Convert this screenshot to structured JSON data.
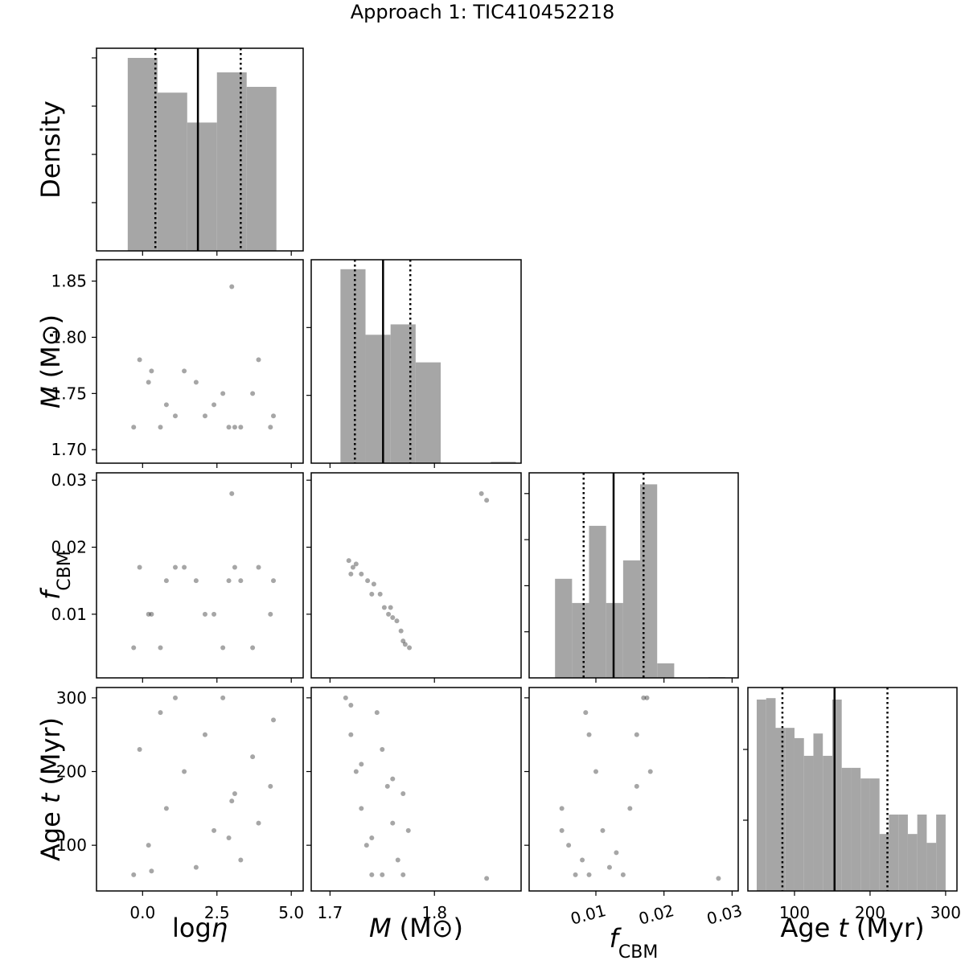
{
  "title": "Approach 1: TIC410452218",
  "chart_data": [
    {
      "type": "histogram",
      "ylabel": "Density",
      "color": "#a6a6a6",
      "xlim": [
        -1.55,
        5.4
      ],
      "xticks": [
        {
          "value": 0,
          "label": "0.0"
        },
        {
          "value": 2.5,
          "label": "2.5"
        },
        {
          "value": 5,
          "label": "5.0"
        }
      ],
      "ylim": [
        0,
        0.21
      ],
      "yticks": [
        0.05,
        0.1,
        0.15,
        0.2
      ],
      "bins": [
        -0.5,
        0.5,
        1.5,
        2.5,
        3.5,
        4.5
      ],
      "counts": [
        0.2,
        0.164,
        0.133,
        0.185,
        0.17
      ],
      "median": 1.86,
      "quantiles": [
        0.43,
        3.3
      ]
    },
    {
      "type": "scatter",
      "ylabel": {
        "symbol": "M",
        "unit": "(M⊙)"
      },
      "xlim": [
        -1.55,
        5.4
      ],
      "xticks": [
        {
          "value": 0,
          "label": "0.0"
        },
        {
          "value": 2.5,
          "label": "2.5"
        },
        {
          "value": 5,
          "label": "5.0"
        }
      ],
      "ylim": [
        1.688,
        1.869
      ],
      "yticks": [
        {
          "value": 1.7,
          "label": "1.70"
        },
        {
          "value": 1.75,
          "label": "1.75"
        },
        {
          "value": 1.8,
          "label": "1.80"
        },
        {
          "value": 1.85,
          "label": "1.85"
        }
      ],
      "x": [
        -0.3,
        0.2,
        0.8,
        1.4,
        2.1,
        2.7,
        3.3,
        3.9,
        4.3,
        -0.1,
        0.6,
        1.8,
        2.4,
        3.1,
        3.7,
        4.4,
        0.3,
        1.1,
        2.9,
        3.0
      ],
      "y": [
        1.72,
        1.76,
        1.74,
        1.77,
        1.73,
        1.75,
        1.72,
        1.78,
        1.72,
        1.78,
        1.72,
        1.76,
        1.74,
        1.72,
        1.75,
        1.73,
        1.77,
        1.73,
        1.72,
        1.845
      ]
    },
    {
      "type": "histogram",
      "color": "#a6a6a6",
      "xlim": [
        1.682,
        1.883
      ],
      "xticks": [
        1.7,
        1.8
      ],
      "ylim": [
        0,
        45
      ],
      "yticks": [
        15,
        30
      ],
      "bins": [
        1.71,
        1.734,
        1.758,
        1.782,
        1.806,
        1.83,
        1.854,
        1.878
      ],
      "counts": [
        42.9,
        28.4,
        30.7,
        22.3,
        0,
        0,
        0.3
      ],
      "median": 1.7508,
      "quantiles": [
        1.7238,
        1.7769
      ]
    },
    {
      "type": "scatter",
      "ylabel": {
        "symbol": "f",
        "subscript": "CBM"
      },
      "xlim": [
        -1.55,
        5.4
      ],
      "xticks": [
        {
          "value": 0,
          "label": "0.0"
        },
        {
          "value": 2.5,
          "label": "2.5"
        },
        {
          "value": 5,
          "label": "5.0"
        }
      ],
      "ylim": [
        0.0005,
        0.0311
      ],
      "yticks": [
        0.01,
        0.02,
        0.03
      ],
      "x": [
        -0.3,
        0.2,
        0.8,
        1.4,
        2.1,
        2.7,
        3.3,
        3.9,
        4.3,
        -0.1,
        0.6,
        1.8,
        2.4,
        3.1,
        3.7,
        4.4,
        0.3,
        1.1,
        2.9,
        3.0
      ],
      "y": [
        0.005,
        0.01,
        0.015,
        0.017,
        0.01,
        0.005,
        0.015,
        0.017,
        0.01,
        0.017,
        0.005,
        0.015,
        0.01,
        0.017,
        0.005,
        0.015,
        0.01,
        0.017,
        0.015,
        0.028
      ]
    },
    {
      "type": "scatter",
      "xlim": [
        1.682,
        1.883
      ],
      "xticks": [
        1.7,
        1.8
      ],
      "ylim": [
        0.0005,
        0.0311
      ],
      "yticks": [
        0.01,
        0.02,
        0.03
      ],
      "x": [
        1.718,
        1.722,
        1.725,
        1.73,
        1.736,
        1.742,
        1.748,
        1.752,
        1.756,
        1.76,
        1.764,
        1.768,
        1.772,
        1.776,
        1.72,
        1.74,
        1.758,
        1.77,
        1.845,
        1.85
      ],
      "y": [
        0.018,
        0.017,
        0.0175,
        0.016,
        0.015,
        0.0145,
        0.013,
        0.011,
        0.01,
        0.0095,
        0.009,
        0.0075,
        0.0055,
        0.005,
        0.016,
        0.013,
        0.011,
        0.006,
        0.028,
        0.027
      ]
    },
    {
      "type": "histogram",
      "color": "#a6a6a6",
      "xlim": [
        0.0002,
        0.0309
      ],
      "xticks": [
        0.01,
        0.02,
        0.03
      ],
      "ylim": [
        0,
        89
      ],
      "yticks": [
        20,
        40,
        60,
        80
      ],
      "bins": [
        0.004,
        0.0065,
        0.009,
        0.0115,
        0.014,
        0.0165,
        0.019,
        0.0215,
        0.024,
        0.0265,
        0.029
      ],
      "counts": [
        43,
        32.5,
        66,
        32.5,
        51,
        84,
        6.3,
        0,
        0,
        0.3
      ],
      "median": 0.0126,
      "quantiles": [
        0.0082,
        0.017
      ]
    },
    {
      "type": "scatter",
      "ylabel": {
        "name": "Age",
        "symbol": "t",
        "unit": "(Myr)"
      },
      "xlabel": {
        "name": "log",
        "symbol": "η"
      },
      "xlim": [
        -1.55,
        5.4
      ],
      "xticks": [
        {
          "value": 0,
          "label": "0.0"
        },
        {
          "value": 2.5,
          "label": "2.5"
        },
        {
          "value": 5,
          "label": "5.0"
        }
      ],
      "ylim": [
        38,
        314
      ],
      "yticks": [
        100,
        200,
        300
      ],
      "x": [
        -0.3,
        0.2,
        0.8,
        1.4,
        2.1,
        2.7,
        3.3,
        3.9,
        4.3,
        -0.1,
        0.6,
        1.8,
        2.4,
        3.1,
        3.7,
        4.4,
        0.3,
        1.1,
        2.9,
        3.0
      ],
      "y": [
        60,
        100,
        150,
        200,
        250,
        300,
        80,
        130,
        180,
        230,
        280,
        70,
        120,
        170,
        220,
        270,
        65,
        300,
        110,
        160
      ]
    },
    {
      "type": "scatter",
      "xlabel": {
        "symbol": "M",
        "unit": "(M⊙)"
      },
      "xlim": [
        1.682,
        1.883
      ],
      "xticks": [
        1.7,
        1.8
      ],
      "ylim": [
        38,
        314
      ],
      "yticks": [
        100,
        200,
        300
      ],
      "x": [
        1.715,
        1.72,
        1.725,
        1.73,
        1.735,
        1.74,
        1.745,
        1.75,
        1.755,
        1.76,
        1.765,
        1.77,
        1.775,
        1.72,
        1.73,
        1.74,
        1.75,
        1.76,
        1.77,
        1.85
      ],
      "y": [
        300,
        250,
        200,
        150,
        100,
        60,
        280,
        230,
        180,
        130,
        80,
        170,
        120,
        290,
        210,
        110,
        60,
        190,
        60,
        55
      ]
    },
    {
      "type": "scatter",
      "xlabel": {
        "symbol": "f",
        "subscript": "CBM"
      },
      "xtick_rotation": -15,
      "xlim": [
        0.0002,
        0.0309
      ],
      "xticks": [
        0.01,
        0.02,
        0.03
      ],
      "ylim": [
        38,
        314
      ],
      "yticks": [
        100,
        200,
        300
      ],
      "x": [
        0.005,
        0.006,
        0.007,
        0.008,
        0.009,
        0.01,
        0.011,
        0.012,
        0.013,
        0.014,
        0.015,
        0.016,
        0.017,
        0.018,
        0.0085,
        0.0175,
        0.016,
        0.005,
        0.009,
        0.028
      ],
      "y": [
        150,
        100,
        60,
        80,
        250,
        200,
        120,
        70,
        90,
        60,
        150,
        250,
        300,
        200,
        280,
        300,
        180,
        120,
        60,
        55
      ]
    },
    {
      "type": "histogram",
      "color": "#a6a6a6",
      "xlabel": {
        "name": "Age",
        "symbol": "t",
        "unit": "(Myr)"
      },
      "xlim": [
        38.3,
        315
      ],
      "xticks": [
        100,
        200,
        300
      ],
      "ylim": [
        0,
        0.00575
      ],
      "yticks": [
        0.002,
        0.004
      ],
      "bins": [
        50,
        62.5,
        75,
        87.5,
        100,
        112.5,
        125,
        137.5,
        150,
        162.5,
        175,
        187.5,
        200,
        212.5,
        225,
        237.5,
        250,
        262.5,
        275,
        287.5,
        300
      ],
      "counts": [
        0.00541,
        0.00545,
        0.00461,
        0.00461,
        0.00432,
        0.00382,
        0.00445,
        0.00382,
        0.00541,
        0.00348,
        0.00348,
        0.00318,
        0.00318,
        0.00161,
        0.00216,
        0.00216,
        0.00161,
        0.00216,
        0.00136,
        0.00216
      ],
      "median": 153,
      "quantiles": [
        84,
        223
      ]
    }
  ]
}
